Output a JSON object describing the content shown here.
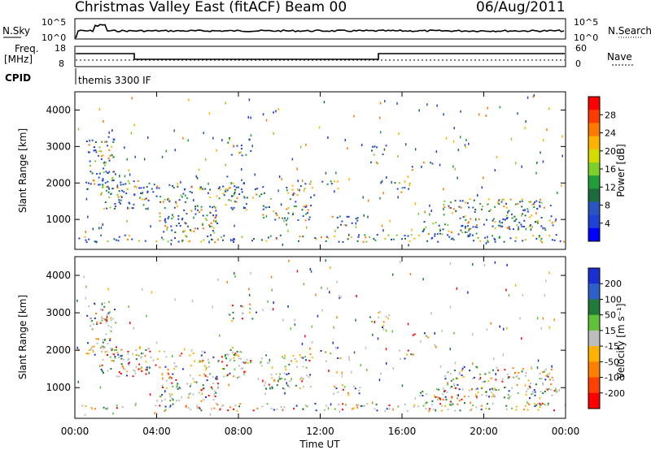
{
  "header": {
    "title": "Christmas Valley East (fitACF)",
    "beam": "Beam 00",
    "date": "06/Aug/2011"
  },
  "panels": {
    "nsky": {
      "left_label": "N.Sky",
      "right_label": "N.Search",
      "left_ticks": [
        "10^5",
        "10^0"
      ],
      "right_ticks": [
        "10^5",
        "10^0"
      ]
    },
    "freq": {
      "left_label_line1": "Freq.",
      "left_label_line2": "[MHz]",
      "right_label": "Nave",
      "left_ticks": [
        "18",
        "8"
      ],
      "right_ticks": [
        "60",
        "0"
      ]
    },
    "cpid": {
      "label": "CPID",
      "value": "themis 3300 IF"
    }
  },
  "colors": {
    "background_data": "#1f3fbf",
    "ground_scatter": "#bdbdbd"
  },
  "chart_data": [
    {
      "type": "heatmap",
      "name": "power",
      "ylabel": "Slant Range [km]",
      "ylim": [
        180,
        4500
      ],
      "y_ticks": [
        1000,
        2000,
        3000,
        4000
      ],
      "x_ticks": [
        "00:00",
        "04:00",
        "08:00",
        "12:00",
        "16:00",
        "20:00",
        "00:00"
      ],
      "colorbar": {
        "label": "Power [dB]",
        "ticks": [
          "28",
          "24",
          "20",
          "16",
          "12",
          "8",
          "4"
        ],
        "colors": [
          "#ff0000",
          "#ff3b00",
          "#ff7800",
          "#ffb300",
          "#d7dc00",
          "#7fcf2a",
          "#1f9e3a",
          "#1d6b3c",
          "#2a55c0",
          "#2140d6",
          "#0000ff"
        ]
      }
    },
    {
      "type": "heatmap",
      "name": "velocity",
      "ylabel": "Slant Range [km]",
      "xlabel": "Time UT",
      "ylim": [
        180,
        4500
      ],
      "y_ticks": [
        1000,
        2000,
        3000,
        4000
      ],
      "x_ticks": [
        "00:00",
        "04:00",
        "08:00",
        "12:00",
        "16:00",
        "20:00",
        "00:00"
      ],
      "colorbar": {
        "label": "Velocity [m s⁻¹]",
        "ticks": [
          "200",
          "100",
          "50",
          "15",
          "-15",
          "-50",
          "-100",
          "-200"
        ],
        "colors": [
          "#1a2fd0",
          "#2f5fc8",
          "#1e7a36",
          "#5fc23a",
          "#bdbdbd",
          "#ffb300",
          "#ff8000",
          "#ff4000",
          "#ff0000"
        ]
      }
    }
  ]
}
